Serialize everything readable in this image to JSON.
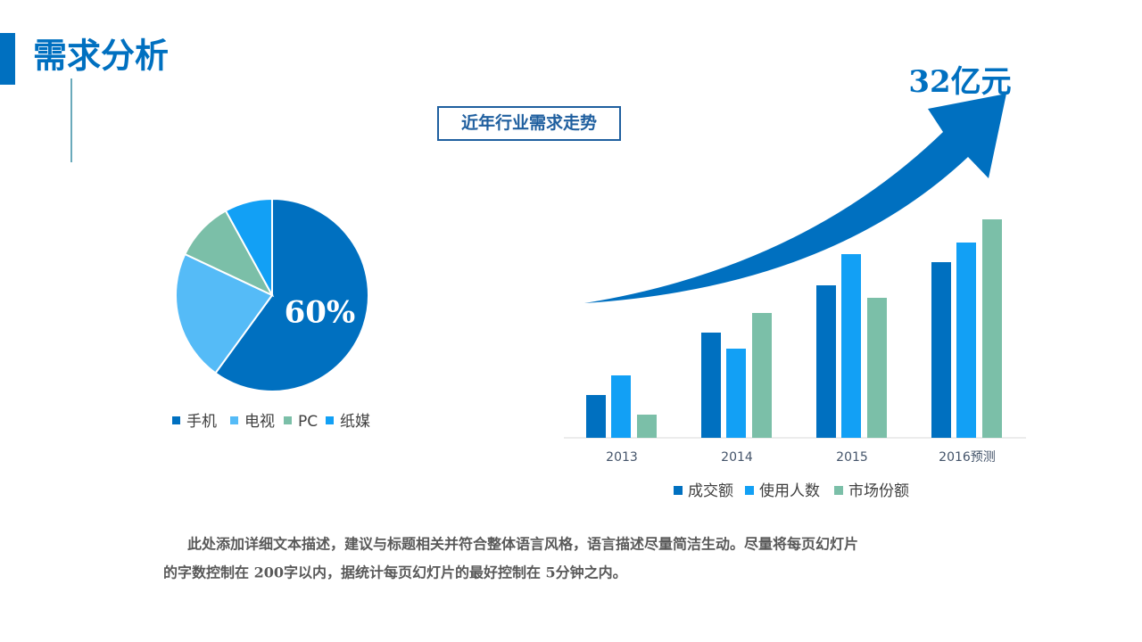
{
  "header": {
    "title": "需求分析"
  },
  "subtitle": "近年行业需求走势",
  "annotation": "32亿元",
  "body": {
    "lines": [
      "此处添加详细文本描述，建议与标题相关并符合整体语言风格，语言描述尽量简洁生动。尽量将每页幻灯片",
      "的字数控制在 200字以内，据统计每页幻灯片的最好控制在 5分钟之内。"
    ]
  },
  "chart_data": [
    {
      "type": "pie",
      "categories": [
        "手机",
        "电视",
        "PC",
        "纸媒"
      ],
      "values": [
        60,
        22,
        10,
        8
      ],
      "value_labels": [
        "60%",
        null,
        null,
        null
      ],
      "colors": [
        "#0070c0",
        "#55bbf7",
        "#7bbfa8",
        "#12a0f5"
      ],
      "legend": "bottom"
    },
    {
      "type": "bar",
      "categories": [
        "2013",
        "2014",
        "2015",
        "2016预测"
      ],
      "ylim": [
        0,
        250
      ],
      "legend": "bottom",
      "series": [
        {
          "name": "成交额",
          "color": "#0070c0",
          "values": [
            48,
            118,
            171,
            197
          ]
        },
        {
          "name": "使用人数",
          "color": "#12a0f5",
          "values": [
            70,
            100,
            206,
            219
          ]
        },
        {
          "name": "市场份额",
          "color": "#7bbfa8",
          "values": [
            26,
            140,
            157,
            245
          ]
        }
      ]
    }
  ]
}
